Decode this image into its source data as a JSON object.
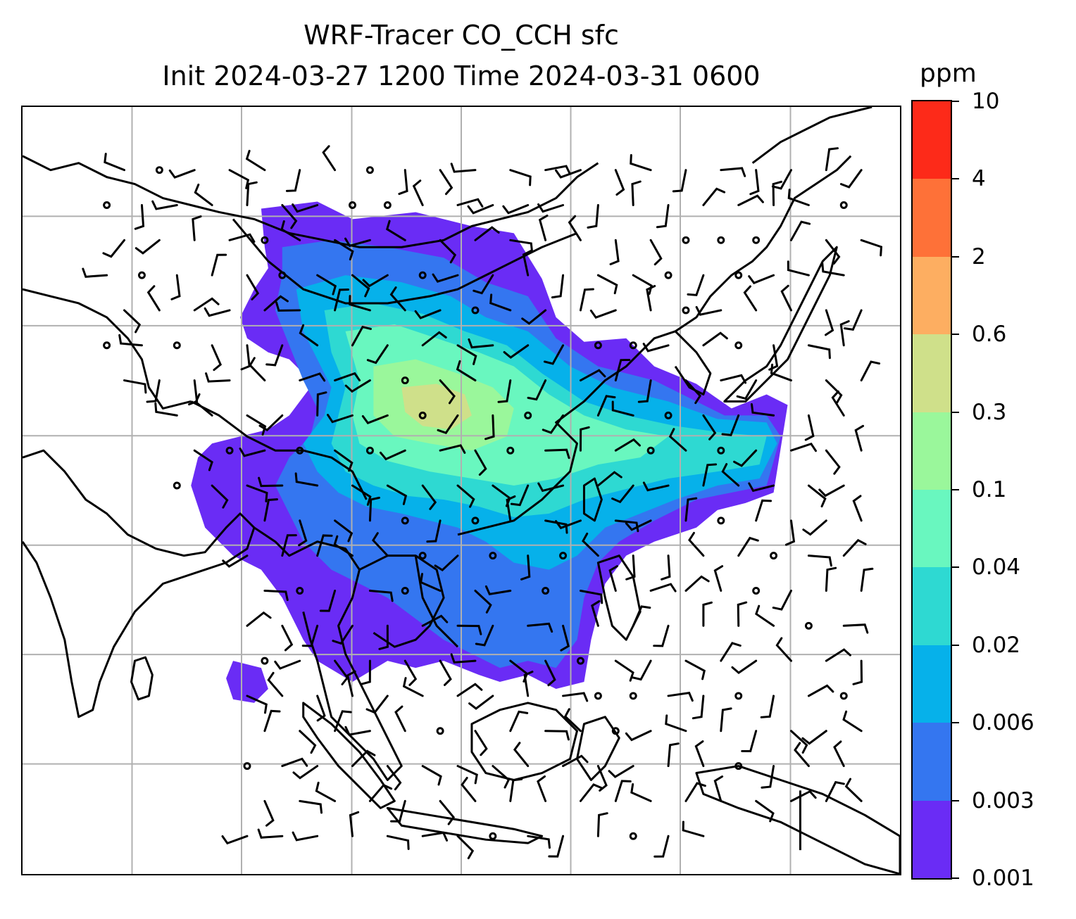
{
  "title": {
    "line1": "WRF-Tracer CO_CCH sfc",
    "line2": "Init 2024-03-27 1200 Time 2024-03-31 0600"
  },
  "map": {
    "field": "CO_CCH sfc",
    "gridlines": true,
    "overlays": [
      "coastlines",
      "country-borders",
      "wind-barbs",
      "filled-contours"
    ]
  },
  "colorbar": {
    "unit": "ppm",
    "levels": [
      "0.001",
      "0.003",
      "0.006",
      "0.02",
      "0.04",
      "0.1",
      "0.3",
      "0.6",
      "2",
      "4",
      "10"
    ],
    "colors": [
      "#6a2cf5",
      "#3476f0",
      "#06b1ea",
      "#2ed9d2",
      "#69f7bf",
      "#9af79b",
      "#cfe08a",
      "#fdae61",
      "#fe7138",
      "#fd2a19"
    ]
  }
}
